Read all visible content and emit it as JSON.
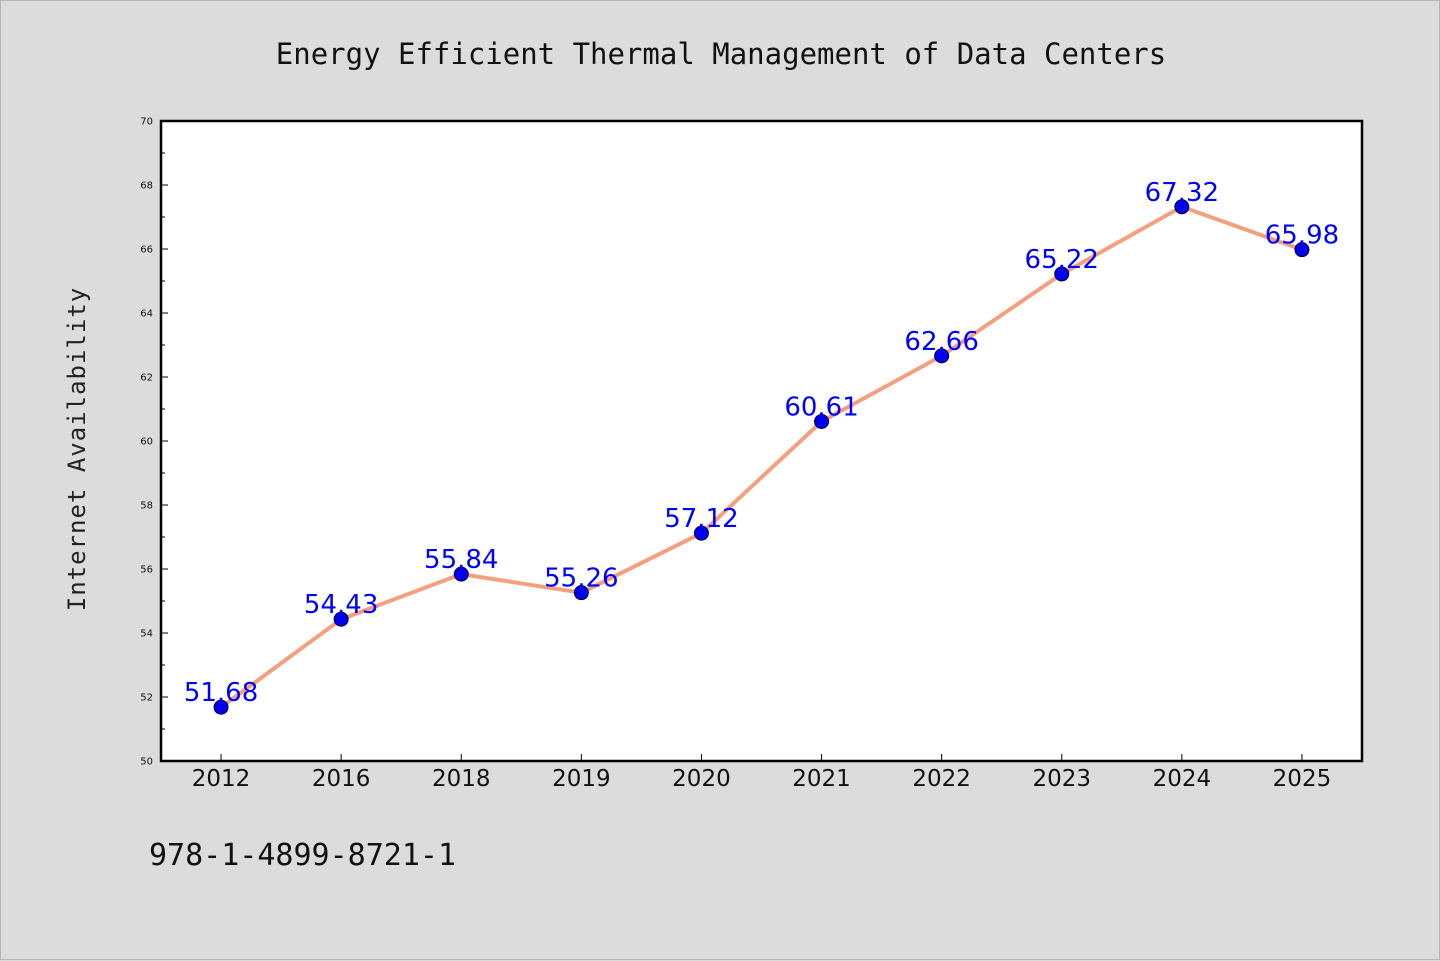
{
  "chart_data": {
    "type": "line",
    "title": "Energy Efficient Thermal Management of Data Centers",
    "xlabel": "",
    "ylabel": "Internet Availability",
    "categories": [
      "2012",
      "2016",
      "2018",
      "2019",
      "2020",
      "2021",
      "2022",
      "2023",
      "2024",
      "2025"
    ],
    "series": [
      {
        "values": [
          51.68,
          54.43,
          55.84,
          55.26,
          57.12,
          60.61,
          62.66,
          65.22,
          67.32,
          65.98
        ],
        "data_labels": [
          "51.68",
          "54.43",
          "55.84",
          "55.26",
          "57.12",
          "60.61",
          "62.66",
          "65.22",
          "67.32",
          "65.98"
        ]
      }
    ],
    "ylim": [
      50,
      70
    ],
    "yticks": [
      "50",
      "52",
      "54",
      "56",
      "58",
      "60",
      "62",
      "64",
      "66",
      "68",
      "70"
    ],
    "grid": false,
    "legend": "none",
    "colors": {
      "line": "#f4a07f",
      "marker": "#0000ee",
      "data_label": "#0000ff",
      "background": "#dcdcdc",
      "plot_area": "#ffffff"
    }
  },
  "footer": {
    "isbn": "978-1-4899-8721-1"
  }
}
